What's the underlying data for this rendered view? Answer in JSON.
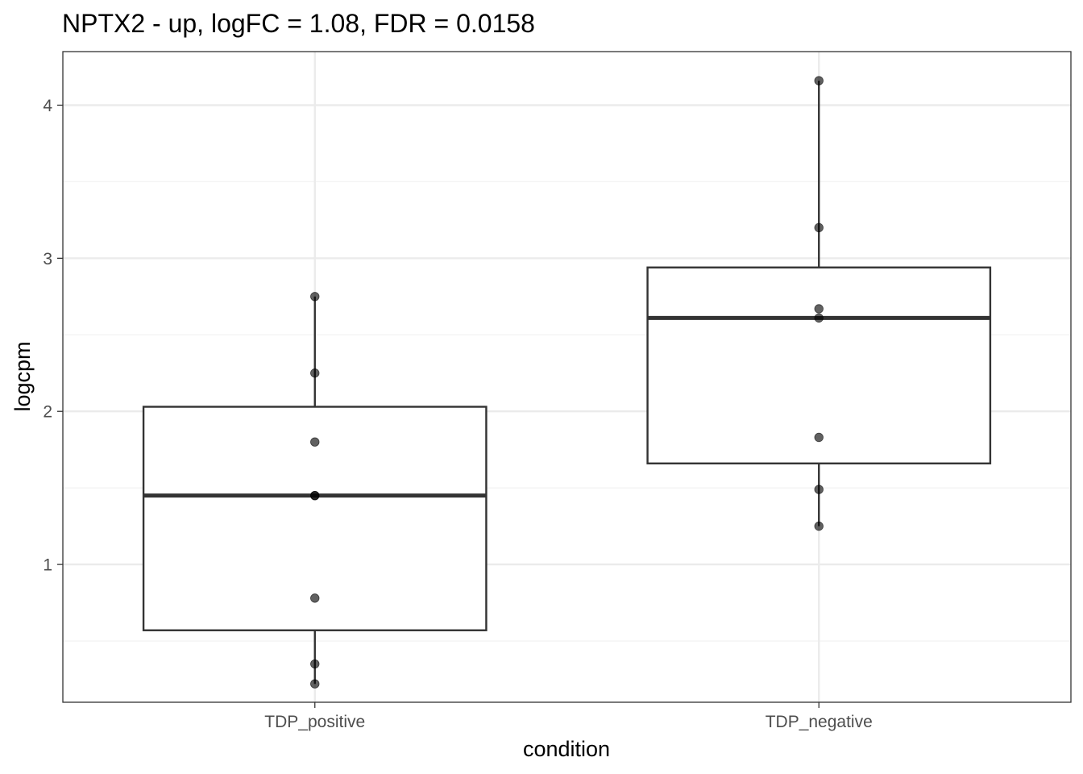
{
  "chart_data": {
    "type": "boxplot",
    "title": "NPTX2 - up, logFC = 1.08, FDR = 0.0158",
    "xlabel": "condition",
    "ylabel": "logcpm",
    "ylim": [
      0.1,
      4.35
    ],
    "yticks": [
      1,
      2,
      3,
      4
    ],
    "grid": true,
    "categories": [
      "TDP_positive",
      "TDP_negative"
    ],
    "boxes": [
      {
        "category": "TDP_positive",
        "whisker_low": 0.22,
        "q1": 0.57,
        "median": 1.45,
        "q3": 2.03,
        "whisker_high": 2.75
      },
      {
        "category": "TDP_negative",
        "whisker_low": 1.25,
        "q1": 1.66,
        "median": 2.61,
        "q3": 2.94,
        "whisker_high": 4.16
      }
    ],
    "points": [
      {
        "category": "TDP_positive",
        "values": [
          2.75,
          2.25,
          1.8,
          1.45,
          1.45,
          0.78,
          0.35,
          0.22
        ]
      },
      {
        "category": "TDP_negative",
        "values": [
          4.16,
          3.2,
          2.67,
          2.61,
          1.83,
          1.49,
          1.25
        ]
      }
    ],
    "colors": {
      "panel_border": "#333333",
      "grid_major": "#ebebeb",
      "grid_minor": "#f3f3f3",
      "box_stroke": "#333333",
      "point_fill": "#000000",
      "tick_label": "#4d4d4d"
    }
  }
}
